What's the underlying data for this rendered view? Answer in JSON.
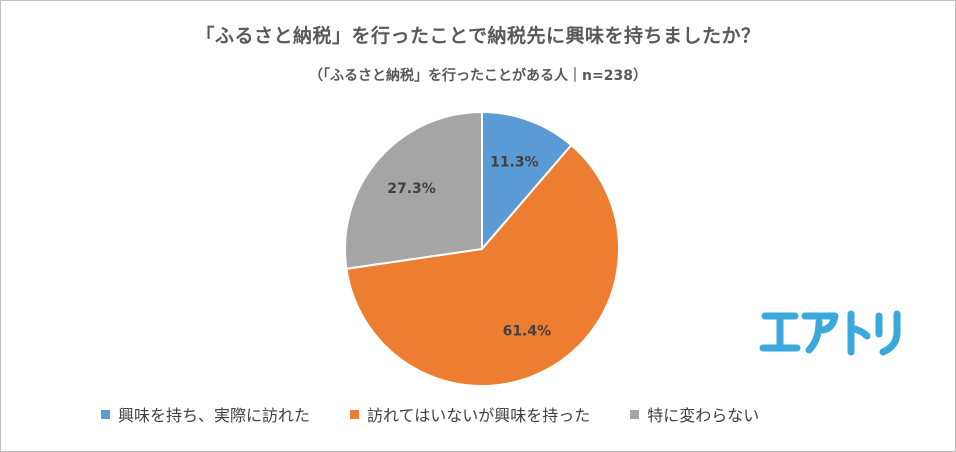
{
  "chart_data": {
    "type": "pie",
    "title": "「ふるさと納税」を行ったことで納税先に興味を持ちましたか？",
    "subtitle": "（「ふるさと納税」を行ったことがある人｜n=238）",
    "slices": [
      {
        "label": "興味を持ち、実際に訪れた",
        "value": 11.3,
        "display": "11.3%",
        "color": "#5b9bd5"
      },
      {
        "label": "訪れてはいないが興味を持った",
        "value": 61.4,
        "display": "61.4%",
        "color": "#ed7d31"
      },
      {
        "label": "特に変わらない",
        "value": 27.3,
        "display": "27.3%",
        "color": "#a5a5a5"
      }
    ],
    "legend_position": "bottom"
  },
  "logo_text": "エアトリ",
  "logo_color": "#3aa8dc"
}
